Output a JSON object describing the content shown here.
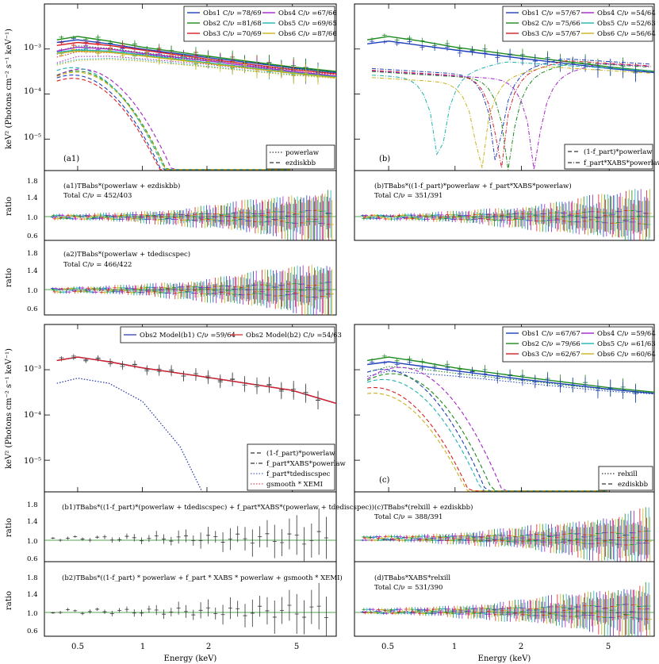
{
  "figure": {
    "shared_xlabel": "Energy (keV)",
    "spectrum_ylabel": "keV² (Photons cm⁻² s⁻¹ keV⁻¹)",
    "ratio_ylabel": "ratio"
  },
  "series_colors": {
    "Obs1": "#1f3fb8",
    "Obs2": "#1b8a1b",
    "Obs3": "#d81f26",
    "Obs4": "#a323c9",
    "Obs5": "#1fb3b0",
    "Obs6": "#c9b21a",
    "ModelB1": "#2033a8",
    "ModelB2": "#d81f26"
  },
  "chart_data": [
    {
      "type": "line",
      "id": "a1",
      "panel_label": "(a1)",
      "xscale": "log",
      "yscale": "log",
      "xlim": [
        0.35,
        8.0
      ],
      "ylim": [
        2e-06,
        0.01
      ],
      "ylabel": "keV² (Photons cm⁻² s⁻¹ keV⁻¹)",
      "x_ticks": [
        "0.5",
        "1",
        "2",
        "5"
      ],
      "y_ticks": [
        "10⁻³",
        "10⁻⁴",
        "10⁻⁵"
      ],
      "legend": [
        {
          "name": "Obs1",
          "stat": "C/ν =78/69"
        },
        {
          "name": "Obs4",
          "stat": "C/ν =67/66"
        },
        {
          "name": "Obs2",
          "stat": "C/ν =81/68"
        },
        {
          "name": "Obs5",
          "stat": "C/ν =69/65"
        },
        {
          "name": "Obs3",
          "stat": "C/ν =70/69"
        },
        {
          "name": "Obs6",
          "stat": "C/ν =87/66"
        }
      ],
      "components_legend": [
        "powerlaw",
        "ezdiskbb"
      ],
      "series": [
        {
          "name": "Obs1 total",
          "x": [
            0.4,
            0.5,
            0.7,
            1,
            2,
            5,
            8
          ],
          "y": [
            0.0014,
            0.0016,
            0.0013,
            0.001,
            0.00065,
            0.00038,
            0.0003
          ]
        },
        {
          "name": "Obs2 total",
          "x": [
            0.4,
            0.5,
            0.7,
            1,
            2,
            5,
            8
          ],
          "y": [
            0.0016,
            0.0019,
            0.0015,
            0.0011,
            0.0007,
            0.0004,
            0.00032
          ]
        },
        {
          "name": "Obs3 total",
          "x": [
            0.4,
            0.5,
            0.7,
            1,
            2,
            5,
            8
          ],
          "y": [
            0.0012,
            0.0014,
            0.0012,
            0.00095,
            0.0006,
            0.00035,
            0.00028
          ]
        },
        {
          "name": "Obs4 total",
          "x": [
            0.4,
            0.5,
            0.7,
            1,
            2,
            5,
            8
          ],
          "y": [
            0.0009,
            0.0011,
            0.001,
            0.0008,
            0.00055,
            0.00032,
            0.00025
          ]
        },
        {
          "name": "Obs5 total",
          "x": [
            0.4,
            0.5,
            0.7,
            1,
            2,
            5,
            8
          ],
          "y": [
            0.00085,
            0.00095,
            0.0009,
            0.00075,
            0.0005,
            0.0003,
            0.00024
          ]
        },
        {
          "name": "Obs6 total",
          "x": [
            0.4,
            0.5,
            0.7,
            1,
            2,
            5,
            8
          ],
          "y": [
            0.0008,
            0.0009,
            0.00085,
            0.0007,
            0.00048,
            0.00029,
            0.00023
          ]
        }
      ]
    },
    {
      "type": "line",
      "id": "b",
      "panel_label": "(b)",
      "xscale": "log",
      "yscale": "log",
      "xlim": [
        0.35,
        8.0
      ],
      "ylim": [
        2e-06,
        0.01
      ],
      "x_ticks": [
        "0.5",
        "1",
        "2",
        "5"
      ],
      "legend": [
        {
          "name": "Obs1",
          "stat": "C/ν =57/67"
        },
        {
          "name": "Obs4",
          "stat": "C/ν =54/64"
        },
        {
          "name": "Obs2",
          "stat": "C/ν =75/66"
        },
        {
          "name": "Obs5",
          "stat": "C/ν =52/63"
        },
        {
          "name": "Obs3",
          "stat": "C/ν =57/67"
        },
        {
          "name": "Obs6",
          "stat": "C/ν =56/64"
        }
      ],
      "components_legend": [
        "(1-f_part)*powerlaw",
        "f_part*XABS*powerlaw"
      ],
      "series": [
        {
          "name": "Obs2 total",
          "x": [
            0.4,
            0.5,
            0.7,
            1,
            2,
            5,
            8
          ],
          "y": [
            0.0016,
            0.0019,
            0.0015,
            0.0011,
            0.0007,
            0.0004,
            0.00032
          ]
        },
        {
          "name": "Obs1 total",
          "x": [
            0.4,
            0.5,
            0.7,
            1,
            2,
            5,
            8
          ],
          "y": [
            0.0013,
            0.0015,
            0.0012,
            0.00095,
            0.00062,
            0.00037,
            0.0003
          ]
        }
      ]
    },
    {
      "type": "line",
      "id": "b1b2",
      "xscale": "log",
      "yscale": "log",
      "xlim": [
        0.35,
        8.0
      ],
      "ylim": [
        2e-06,
        0.01
      ],
      "ylabel": "keV² (Photons cm⁻² s⁻¹ keV⁻¹)",
      "x_ticks": [
        "0.5",
        "1",
        "2",
        "5"
      ],
      "y_ticks": [
        "10⁻³",
        "10⁻⁴",
        "10⁻⁵"
      ],
      "legend": [
        {
          "name": "Obs2 Model(b1)",
          "stat": "C/ν =59/64"
        },
        {
          "name": "Obs2 Model(b2)",
          "stat": "C/ν =54/63"
        }
      ],
      "components_legend": [
        "(1-f_part)*powerlaw",
        "f_part*XABS*powerlaw",
        "f_part*tdediscspec",
        "gsmooth * XEMI"
      ],
      "series": [
        {
          "name": "Obs2 Model(b1)",
          "x": [
            0.4,
            0.5,
            0.7,
            1,
            2,
            5,
            8
          ],
          "y": [
            0.0016,
            0.0019,
            0.0015,
            0.0011,
            0.00068,
            0.00035,
            0.00018
          ]
        },
        {
          "name": "Obs2 Model(b2)",
          "x": [
            0.4,
            0.5,
            0.7,
            1,
            2,
            5,
            8
          ],
          "y": [
            0.0016,
            0.0019,
            0.0015,
            0.0011,
            0.00068,
            0.00035,
            0.00018
          ]
        },
        {
          "name": "f_part*tdediscspec",
          "x": [
            0.4,
            0.5,
            0.7,
            1,
            1.5,
            1.9
          ],
          "y": [
            0.0005,
            0.00065,
            0.0005,
            0.0002,
            2e-05,
            2e-06
          ]
        }
      ]
    },
    {
      "type": "line",
      "id": "c",
      "panel_label": "(c)",
      "xscale": "log",
      "yscale": "log",
      "xlim": [
        0.35,
        8.0
      ],
      "ylim": [
        2e-06,
        0.01
      ],
      "x_ticks": [
        "0.5",
        "1",
        "2",
        "5"
      ],
      "legend": [
        {
          "name": "Obs1",
          "stat": "C/ν =67/67"
        },
        {
          "name": "Obs4",
          "stat": "C/ν =59/64"
        },
        {
          "name": "Obs2",
          "stat": "C/ν =79/66"
        },
        {
          "name": "Obs5",
          "stat": "C/ν =61/63"
        },
        {
          "name": "Obs3",
          "stat": "C/ν =62/67"
        },
        {
          "name": "Obs6",
          "stat": "C/ν =60/64"
        }
      ],
      "components_legend": [
        "relxill",
        "ezdiskbb"
      ],
      "series": [
        {
          "name": "Obs2 total",
          "x": [
            0.4,
            0.5,
            0.7,
            1,
            2,
            5,
            8
          ],
          "y": [
            0.0016,
            0.0019,
            0.0015,
            0.0011,
            0.0007,
            0.0004,
            0.00032
          ]
        },
        {
          "name": "Obs1 total",
          "x": [
            0.4,
            0.5,
            0.7,
            1,
            2,
            5,
            8
          ],
          "y": [
            0.0013,
            0.0015,
            0.0012,
            0.00095,
            0.00062,
            0.00037,
            0.0003
          ]
        }
      ]
    }
  ],
  "ratio_panels": [
    {
      "id": "a1r",
      "model_line": "(a1)TBabs*(powerlaw + ezdiskbb)",
      "total": "Total C/ν = 452/403",
      "yticks": [
        "1.8",
        "1.4",
        "1.0",
        "0.6"
      ],
      "ylim": [
        0.5,
        2.0
      ]
    },
    {
      "id": "a2r",
      "model_line": "(a2)TBabs*(powerlaw + tdediscspec)",
      "total": "Total C/ν = 466/422",
      "yticks": [
        "1.8",
        "1.4",
        "1.0",
        "0.6"
      ],
      "ylim": [
        0.5,
        2.0
      ]
    },
    {
      "id": "br",
      "model_line": "(b)TBabs*((1-f_part)*powerlaw + f_part*XABS*powerlaw)",
      "total": "Total C/ν = 351/391",
      "ylim": [
        0.5,
        2.0
      ]
    },
    {
      "id": "b1r",
      "model_line": "(b1)TBabs*((1-f_part)*(powerlaw + tdediscspec) + f_part*XABS*(powerlaw + tdediscspec))",
      "total": "",
      "yticks": [
        "1.8",
        "1.4",
        "1.0",
        "0.6"
      ],
      "ylim": [
        0.5,
        2.0
      ]
    },
    {
      "id": "b2r",
      "model_line": "(b2)TBabs*((1-f_part) * powerlaw + f_part * XABS * powerlaw + gsmooth * XEMI)",
      "total": "",
      "yticks": [
        "1.8",
        "1.4",
        "1.0",
        "0.6"
      ],
      "ylim": [
        0.5,
        2.0
      ]
    },
    {
      "id": "cr",
      "model_line": "(c)TBabs*(relxill + ezdiskbb)",
      "total": "Total C/ν = 388/391",
      "ylim": [
        0.5,
        2.0
      ]
    },
    {
      "id": "dr",
      "model_line": "(d)TBabs*XABS*relxill",
      "total": "Total C/ν = 531/390",
      "ylim": [
        0.5,
        2.0
      ]
    }
  ]
}
